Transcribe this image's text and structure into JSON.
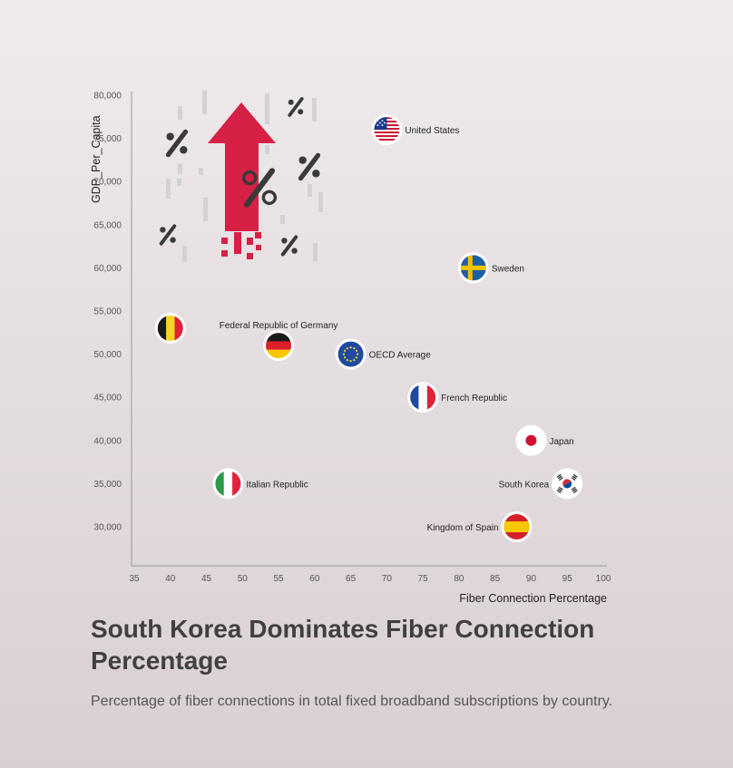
{
  "chart_data": {
    "type": "scatter",
    "title": "South Korea Dominates Fiber Connection Percentage",
    "subtitle": "Percentage of fiber connections in total fixed broadband subscriptions by country.",
    "xlabel": "Fiber Connection Percentage",
    "ylabel": "GDP_Per_Capita",
    "xlim": [
      35,
      100
    ],
    "ylim": [
      28000,
      80000
    ],
    "x_ticks": [
      "35",
      "40",
      "45",
      "50",
      "55",
      "60",
      "65",
      "70",
      "75",
      "80",
      "85",
      "90",
      "95",
      "100"
    ],
    "y_ticks": [
      "30,000",
      "35,000",
      "40,000",
      "45,000",
      "50,000",
      "55,000",
      "60,000",
      "65,000",
      "70,000",
      "75,000",
      "80,000"
    ],
    "grid": false,
    "points": [
      {
        "label": "United States",
        "flag": "us-flag-icon",
        "x": 70,
        "y": 76000,
        "label_side": "right"
      },
      {
        "label": "Sweden",
        "flag": "sweden-flag-icon",
        "x": 82,
        "y": 60000,
        "label_side": "right"
      },
      {
        "label": "",
        "flag": "belgium-flag-icon",
        "x": 40,
        "y": 53000,
        "label_side": "none"
      },
      {
        "label": "Federal Republic of Germany",
        "flag": "germany-flag-icon",
        "x": 55,
        "y": 51000,
        "label_side": "above"
      },
      {
        "label": "OECD Average",
        "flag": "eu-flag-icon",
        "x": 65,
        "y": 50000,
        "label_side": "right"
      },
      {
        "label": "French Republic",
        "flag": "france-flag-icon",
        "x": 75,
        "y": 45000,
        "label_side": "right"
      },
      {
        "label": "Japan",
        "flag": "japan-flag-icon",
        "x": 90,
        "y": 40000,
        "label_side": "right"
      },
      {
        "label": "South Korea",
        "flag": "south-korea-flag-icon",
        "x": 95,
        "y": 35000,
        "label_side": "left"
      },
      {
        "label": "Italian Republic",
        "flag": "italy-flag-icon",
        "x": 48,
        "y": 35000,
        "label_side": "right"
      },
      {
        "label": "Kingdom of Spain",
        "flag": "spain-flag-icon",
        "x": 88,
        "y": 30000,
        "label_side": "left"
      }
    ],
    "colors": {
      "arrow": "#d62045",
      "percent": "#3a3a3a",
      "dash": "#cfcfcf"
    }
  }
}
